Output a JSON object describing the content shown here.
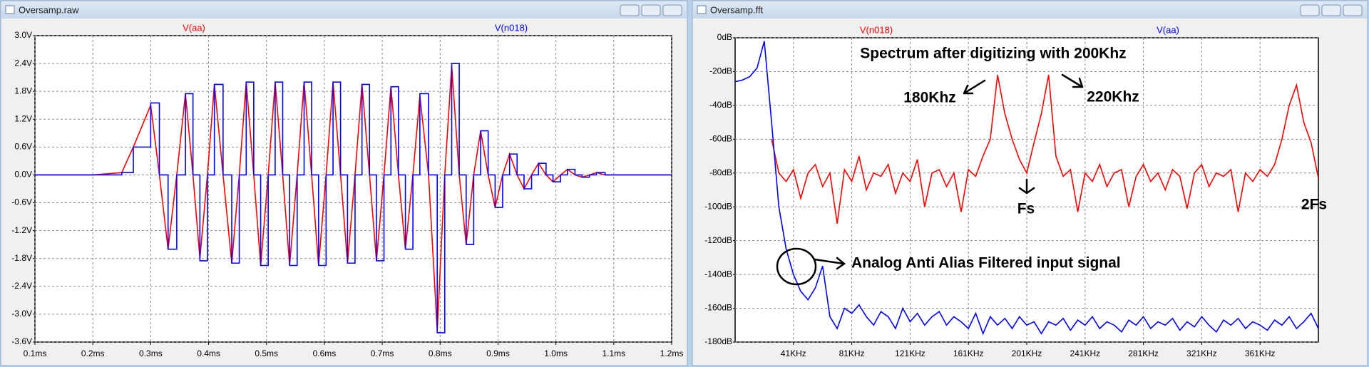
{
  "chart_data": [
    {
      "type": "line",
      "window_title": "Oversamp.raw",
      "grid": true,
      "xlim": [
        0.1,
        1.2
      ],
      "xticks": [
        {
          "value": 0.1,
          "label": "0.1ms"
        },
        {
          "value": 0.2,
          "label": "0.2ms"
        },
        {
          "value": 0.3,
          "label": "0.3ms"
        },
        {
          "value": 0.4,
          "label": "0.4ms"
        },
        {
          "value": 0.5,
          "label": "0.5ms"
        },
        {
          "value": 0.6,
          "label": "0.6ms"
        },
        {
          "value": 0.7,
          "label": "0.7ms"
        },
        {
          "value": 0.8,
          "label": "0.8ms"
        },
        {
          "value": 0.9,
          "label": "0.9ms"
        },
        {
          "value": 1.0,
          "label": "1.0ms"
        },
        {
          "value": 1.1,
          "label": "1.1ms"
        },
        {
          "value": 1.2,
          "label": "1.2ms"
        }
      ],
      "ylim": [
        -3.6,
        3.0
      ],
      "yticks": [
        {
          "value": 3.0,
          "label": "3.0V"
        },
        {
          "value": 2.4,
          "label": "2.4V"
        },
        {
          "value": 1.8,
          "label": "1.8V"
        },
        {
          "value": 1.2,
          "label": "1.2V"
        },
        {
          "value": 0.6,
          "label": "0.6V"
        },
        {
          "value": 0.0,
          "label": "0.0V"
        },
        {
          "value": -0.6,
          "label": "-0.6V"
        },
        {
          "value": -1.2,
          "label": "-1.2V"
        },
        {
          "value": -1.8,
          "label": "-1.8V"
        },
        {
          "value": -2.4,
          "label": "-2.4V"
        },
        {
          "value": -3.0,
          "label": "-3.0V"
        },
        {
          "value": -3.6,
          "label": "-3.6V"
        }
      ],
      "x": [
        0.1,
        0.2,
        0.25,
        0.27,
        0.3,
        0.315,
        0.33,
        0.345,
        0.36,
        0.373,
        0.385,
        0.398,
        0.41,
        0.425,
        0.44,
        0.453,
        0.465,
        0.478,
        0.49,
        0.503,
        0.515,
        0.528,
        0.54,
        0.553,
        0.565,
        0.578,
        0.59,
        0.603,
        0.615,
        0.628,
        0.64,
        0.653,
        0.665,
        0.678,
        0.69,
        0.703,
        0.715,
        0.728,
        0.74,
        0.753,
        0.765,
        0.78,
        0.795,
        0.808,
        0.82,
        0.833,
        0.845,
        0.858,
        0.87,
        0.883,
        0.895,
        0.908,
        0.92,
        0.933,
        0.945,
        0.958,
        0.97,
        0.983,
        0.995,
        1.008,
        1.02,
        1.033,
        1.045,
        1.058,
        1.07,
        1.085,
        1.1,
        1.2
      ],
      "series": [
        {
          "name": "V(aa)",
          "color": "#ff0000",
          "values": [
            0,
            0,
            0.05,
            0.6,
            1.5,
            0,
            -1.6,
            0,
            1.75,
            0,
            -1.8,
            0,
            1.95,
            0,
            -1.9,
            0,
            2.0,
            0,
            -1.95,
            0,
            2.0,
            0,
            -1.95,
            0,
            2.0,
            0,
            -1.95,
            0,
            2.0,
            0,
            -1.9,
            0,
            1.95,
            0,
            -1.85,
            0,
            1.9,
            0,
            -1.6,
            0,
            1.7,
            0,
            -3.35,
            0,
            2.35,
            0,
            -1.5,
            0,
            0.95,
            0,
            -0.7,
            0,
            0.45,
            0,
            -0.3,
            0,
            0.25,
            0,
            -0.15,
            0,
            0.12,
            0,
            -0.05,
            0,
            0.05,
            0,
            0,
            0
          ]
        },
        {
          "name": "V(n018)",
          "color": "#0000ff",
          "step": true,
          "values": [
            0,
            0,
            0.05,
            0.6,
            1.55,
            0,
            -1.6,
            0,
            1.75,
            0,
            -1.85,
            0,
            1.95,
            0,
            -1.9,
            0,
            2.0,
            0,
            -1.95,
            0,
            2.0,
            0,
            -1.95,
            0,
            2.0,
            0,
            -1.95,
            0,
            2.0,
            0,
            -1.9,
            0,
            1.95,
            0,
            -1.85,
            0,
            1.9,
            0,
            -1.6,
            0,
            1.75,
            0,
            -3.4,
            0,
            2.4,
            0,
            -1.5,
            0,
            0.95,
            0,
            -0.7,
            0,
            0.45,
            0,
            -0.3,
            0,
            0.25,
            0,
            -0.15,
            0,
            0.12,
            0,
            -0.05,
            0,
            0.05,
            0,
            0,
            0
          ]
        }
      ]
    },
    {
      "type": "line",
      "window_title": "Oversamp.fft",
      "grid": true,
      "xlim": [
        1,
        401
      ],
      "xticks": [
        {
          "value": 41,
          "label": "41KHz"
        },
        {
          "value": 81,
          "label": "81KHz"
        },
        {
          "value": 121,
          "label": "121KHz"
        },
        {
          "value": 161,
          "label": "161KHz"
        },
        {
          "value": 201,
          "label": "201KHz"
        },
        {
          "value": 241,
          "label": "241KHz"
        },
        {
          "value": 281,
          "label": "281KHz"
        },
        {
          "value": 321,
          "label": "321KHz"
        },
        {
          "value": 361,
          "label": "361KHz"
        }
      ],
      "ylim": [
        -180,
        0
      ],
      "yticks": [
        {
          "value": 0,
          "label": "0dB"
        },
        {
          "value": -20,
          "label": "-20dB"
        },
        {
          "value": -40,
          "label": "-40dB"
        },
        {
          "value": -60,
          "label": "-60dB"
        },
        {
          "value": -80,
          "label": "-80dB"
        },
        {
          "value": -100,
          "label": "-100dB"
        },
        {
          "value": -120,
          "label": "-120dB"
        },
        {
          "value": -140,
          "label": "-140dB"
        },
        {
          "value": -160,
          "label": "-160dB"
        },
        {
          "value": -180,
          "label": "-180dB"
        }
      ],
      "x": [
        1,
        6,
        11,
        16,
        21,
        26,
        31,
        36,
        41,
        46,
        51,
        56,
        61,
        66,
        71,
        76,
        81,
        86,
        91,
        96,
        101,
        106,
        111,
        116,
        121,
        126,
        131,
        136,
        141,
        146,
        151,
        156,
        161,
        166,
        171,
        176,
        181,
        186,
        191,
        196,
        201,
        206,
        211,
        216,
        221,
        226,
        231,
        236,
        241,
        246,
        251,
        256,
        261,
        266,
        271,
        276,
        281,
        286,
        291,
        296,
        301,
        306,
        311,
        316,
        321,
        326,
        331,
        336,
        341,
        346,
        351,
        356,
        361,
        366,
        371,
        376,
        381,
        386,
        391,
        396,
        401
      ],
      "series": [
        {
          "name": "V(n018)",
          "color": "#ff0000",
          "values": [
            null,
            null,
            null,
            null,
            null,
            -60,
            -80,
            -85,
            -78,
            -95,
            -80,
            -75,
            -88,
            -80,
            -110,
            -78,
            -85,
            -70,
            -90,
            -80,
            -82,
            -75,
            -92,
            -80,
            -85,
            -72,
            -100,
            -80,
            -78,
            -88,
            -80,
            -103,
            -78,
            -82,
            -70,
            -60,
            -22,
            -45,
            -60,
            -72,
            -80,
            -62,
            -45,
            -22,
            -70,
            -82,
            -78,
            -103,
            -80,
            -85,
            -75,
            -88,
            -80,
            -78,
            -100,
            -82,
            -75,
            -85,
            -80,
            -90,
            -78,
            -82,
            -101,
            -80,
            -75,
            -88,
            -80,
            -82,
            -78,
            -103,
            -80,
            -85,
            -78,
            -82,
            -75,
            -60,
            -40,
            -28,
            -50,
            -62,
            -83
          ]
        },
        {
          "name": "V(aa)",
          "color": "#0000ff",
          "values": [
            -26,
            -25,
            -23,
            -18,
            -2,
            -50,
            -100,
            -125,
            -140,
            -150,
            -155,
            -148,
            -135,
            -165,
            -172,
            -160,
            -163,
            -158,
            -165,
            -170,
            -162,
            -165,
            -172,
            -160,
            -168,
            -163,
            -170,
            -165,
            -162,
            -170,
            -165,
            -168,
            -172,
            -163,
            -175,
            -165,
            -170,
            -166,
            -172,
            -165,
            -170,
            -168,
            -175,
            -168,
            -170,
            -166,
            -173,
            -167,
            -170,
            -165,
            -172,
            -168,
            -170,
            -174,
            -167,
            -170,
            -165,
            -172,
            -168,
            -170,
            -166,
            -173,
            -168,
            -171,
            -165,
            -170,
            -174,
            -167,
            -170,
            -166,
            -172,
            -168,
            -170,
            -173,
            -167,
            -170,
            -165,
            -172,
            -168,
            -163,
            -172
          ]
        }
      ],
      "annotations": [
        "Spectrum after digitizing with 200Khz",
        "180Khz",
        "220Khz",
        "Fs",
        "2Fs",
        "Analog Anti Alias Filtered input signal"
      ]
    }
  ]
}
